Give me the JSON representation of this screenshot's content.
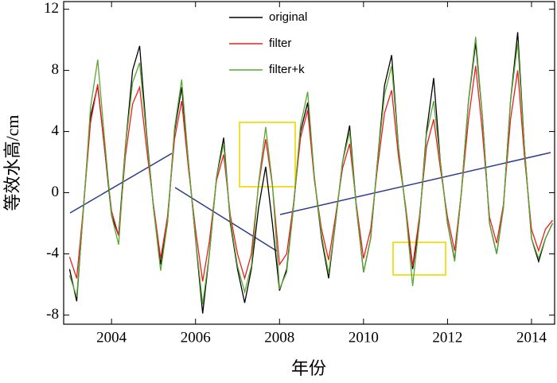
{
  "chart_data": {
    "type": "line",
    "xlabel": "年份",
    "ylabel": "等效水高/cm",
    "x": [
      2003.0,
      2003.17,
      2003.33,
      2003.5,
      2003.67,
      2003.83,
      2004.0,
      2004.17,
      2004.33,
      2004.5,
      2004.67,
      2004.83,
      2005.0,
      2005.17,
      2005.33,
      2005.5,
      2005.67,
      2005.83,
      2006.0,
      2006.17,
      2006.33,
      2006.5,
      2006.67,
      2006.83,
      2007.0,
      2007.17,
      2007.33,
      2007.5,
      2007.67,
      2007.83,
      2008.0,
      2008.17,
      2008.33,
      2008.5,
      2008.67,
      2008.83,
      2009.0,
      2009.17,
      2009.33,
      2009.5,
      2009.67,
      2009.83,
      2010.0,
      2010.17,
      2010.33,
      2010.5,
      2010.67,
      2010.83,
      2011.0,
      2011.17,
      2011.33,
      2011.5,
      2011.67,
      2011.83,
      2012.0,
      2012.17,
      2012.33,
      2012.5,
      2012.67,
      2012.83,
      2013.0,
      2013.17,
      2013.33,
      2013.5,
      2013.67,
      2013.83,
      2014.0,
      2014.17,
      2014.33,
      2014.5
    ],
    "series": [
      {
        "name": "original",
        "color": "#000000",
        "values": [
          -5,
          -7.1,
          -1,
          5,
          7,
          3,
          -1.5,
          -2.8,
          3,
          8,
          9.6,
          4,
          -1,
          -4.7,
          -2,
          4,
          6.9,
          2,
          -3,
          -7.9,
          -4,
          1,
          3.6,
          -2,
          -5,
          -7.2,
          -5,
          -1,
          1.7,
          -2,
          -6.4,
          -5,
          -1,
          4,
          5.9,
          1,
          -3,
          -5.6,
          -2,
          2,
          4.4,
          -1,
          -5.2,
          -3,
          2,
          7,
          9.0,
          3,
          -1,
          -5,
          -2,
          4,
          7.5,
          2,
          -2,
          -4.4,
          0,
          6,
          9.8,
          5,
          -2,
          -4,
          -1,
          6,
          10.5,
          3,
          -3,
          -4.5,
          -3,
          -2
        ]
      },
      {
        "name": "filter",
        "color": "#e8201e",
        "values": [
          -4.2,
          -5.6,
          -1,
          4.6,
          7.1,
          3,
          -1.2,
          -2.8,
          2.4,
          5.8,
          6.9,
          3,
          -0.8,
          -4.3,
          -1.6,
          3.5,
          6,
          1.6,
          -2.4,
          -5.8,
          -3.2,
          0.8,
          2.5,
          -1.5,
          -4,
          -5.6,
          -4,
          0.5,
          3.5,
          0.5,
          -4.7,
          -4,
          -0.8,
          3.6,
          5.4,
          0.8,
          -2.4,
          -4.4,
          -1.6,
          1.6,
          3.2,
          -0.8,
          -4.3,
          -2.4,
          1.6,
          5.2,
          6.7,
          2.4,
          -0.8,
          -4.8,
          -1.6,
          3,
          4.8,
          1.6,
          -1.6,
          -3.8,
          0,
          4.8,
          8.3,
          4,
          -1.6,
          -3.3,
          -0.8,
          4.8,
          8,
          2.4,
          -2.4,
          -3.8,
          -2.4,
          -1.8
        ]
      },
      {
        "name": "filter+k",
        "color": "#5aa632",
        "values": [
          -5.4,
          -6.8,
          -1.2,
          5.6,
          8.7,
          3.6,
          -1.5,
          -3.4,
          3,
          7.2,
          8.5,
          3.8,
          -1,
          -5.1,
          -2,
          4.2,
          7.4,
          2,
          -3,
          -7.3,
          -4,
          1,
          3.2,
          -1.8,
          -4.8,
          -6.5,
          -4.8,
          0.6,
          4.3,
          0.6,
          -6.3,
          -5.2,
          -1,
          4.4,
          6.6,
          1,
          -2.8,
          -5.3,
          -2,
          2,
          4.0,
          -1,
          -5.2,
          -3,
          2,
          6.4,
          8.3,
          3,
          -1,
          -6.1,
          -2,
          3.8,
          6,
          2,
          -2,
          -4.5,
          0,
          6,
          10.2,
          5,
          -2,
          -4,
          -1,
          6,
          9.8,
          3,
          -3,
          -4.3,
          -3,
          -2
        ]
      }
    ],
    "xlim": [
      2002.86,
      2014.55
    ],
    "xticks": [
      2004,
      2006,
      2008,
      2010,
      2012,
      2014
    ],
    "ylim": [
      -8.6,
      12.5
    ],
    "yticks": [
      -8,
      -4,
      0,
      4,
      8,
      12
    ],
    "legend": "upper center",
    "grid": false
  }
}
